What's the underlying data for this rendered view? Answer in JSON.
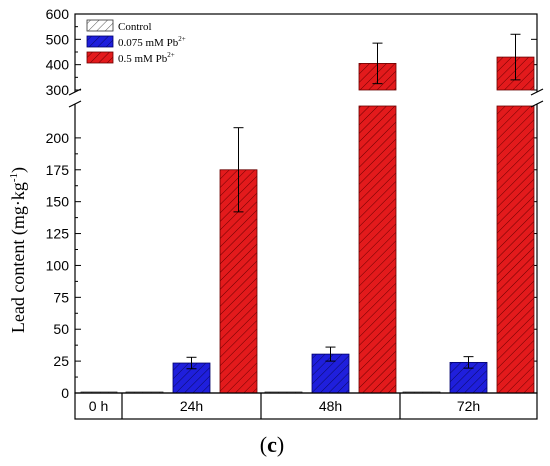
{
  "chart_data": {
    "type": "bar",
    "ylabel": "Lead content (mg·kg",
    "ylabel_sup": "-1",
    "ylabel_close": ")",
    "panel_label_open": "(",
    "panel_label_letter": "c",
    "panel_label_close": ")",
    "categories": [
      "0 h",
      "24h",
      "48h",
      "72h"
    ],
    "axis_break": true,
    "lower_ylim": [
      0,
      225
    ],
    "lower_yticks": [
      "0",
      "25",
      "50",
      "75",
      "100",
      "125",
      "150",
      "175",
      "200"
    ],
    "upper_ylim": [
      300,
      600
    ],
    "upper_yticks": [
      "300",
      "400",
      "500",
      "600"
    ],
    "series": [
      {
        "name": "Control",
        "name_sup": "",
        "color": "#ffffff",
        "values": [
          0.3,
          0.3,
          0.3,
          0.3
        ],
        "errors": [
          0,
          0,
          0,
          0
        ]
      },
      {
        "name": "0.075 mM Pb",
        "name_sup": "2+",
        "color": "#1f1fdc",
        "values": [
          null,
          23.5,
          30.5,
          24
        ],
        "errors": [
          0,
          4.5,
          5.5,
          4.5
        ]
      },
      {
        "name": "0.5 mM Pb",
        "name_sup": "2+",
        "color": "#e31a1c",
        "values": [
          null,
          175,
          405,
          430
        ],
        "errors": [
          0,
          33,
          80,
          90
        ]
      }
    ],
    "legend_position": "top-left",
    "grid": false
  }
}
